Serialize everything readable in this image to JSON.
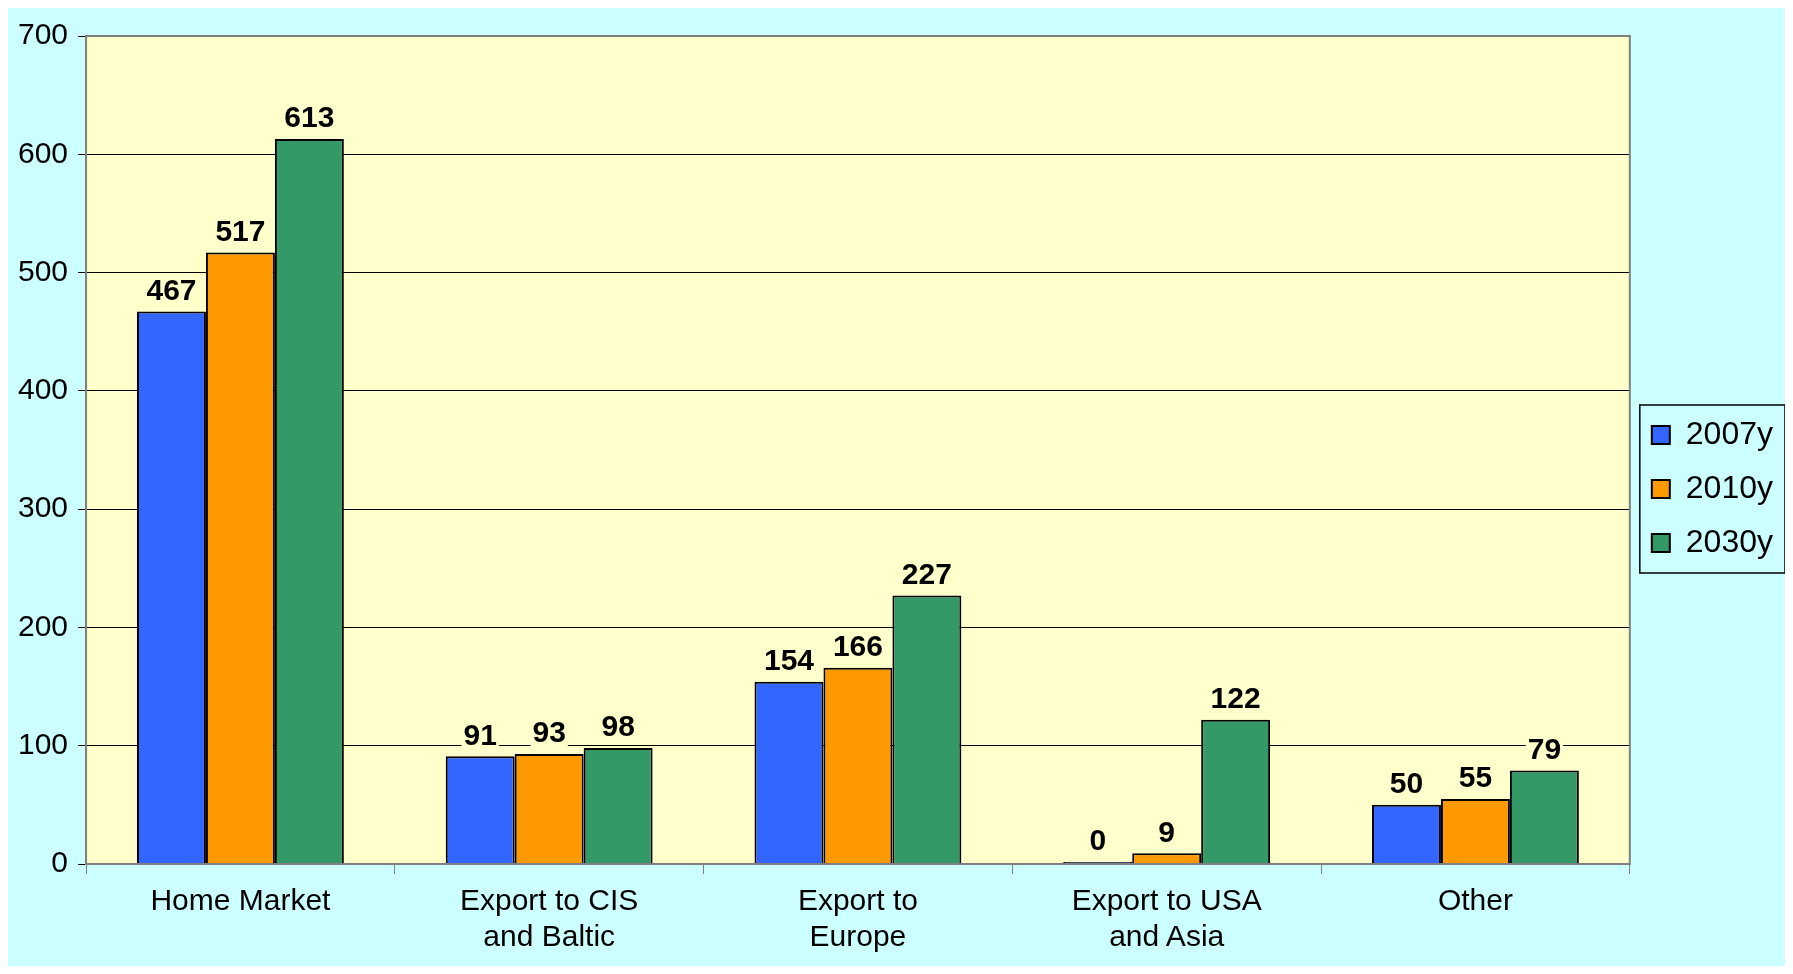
{
  "chart_data": {
    "type": "bar",
    "categories": [
      "Home Market",
      "Export to CIS and Baltic",
      "Export to Europe",
      "Export to USA and Asia",
      "Other"
    ],
    "series": [
      {
        "name": "2007y",
        "color": "#3366ff",
        "values": [
          467,
          91,
          154,
          0,
          50
        ]
      },
      {
        "name": "2010y",
        "color": "#ff9900",
        "values": [
          517,
          93,
          166,
          9,
          55
        ]
      },
      {
        "name": "2030y",
        "color": "#339966",
        "values": [
          613,
          98,
          227,
          122,
          79
        ]
      }
    ],
    "ylim": [
      0,
      700
    ],
    "yticks": [
      0,
      100,
      200,
      300,
      400,
      500,
      600,
      700
    ],
    "grid": "y",
    "legend": "right",
    "data_labels": true
  }
}
